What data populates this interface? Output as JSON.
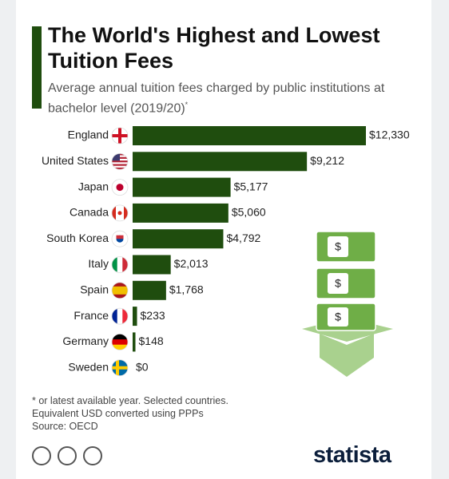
{
  "chart_data": {
    "type": "bar",
    "title": "The World's Highest and Lowest Tuition Fees",
    "subtitle": "Average annual tuition fees charged by public institutions at bachelor level (2019/20)",
    "subtitle_mark": "*",
    "categories": [
      "England",
      "United States",
      "Japan",
      "Canada",
      "South Korea",
      "Italy",
      "Spain",
      "France",
      "Germany",
      "Sweden"
    ],
    "values": [
      12330,
      9212,
      5177,
      5060,
      4792,
      2013,
      1768,
      233,
      148,
      0
    ],
    "value_labels": [
      "$12,330",
      "$9,212",
      "$5,177",
      "$5,060",
      "$4,792",
      "$2,013",
      "$1,768",
      "$233",
      "$148",
      "$0"
    ],
    "color": "#1f4d0e",
    "notes": [
      "* or latest available year. Selected countries.",
      "Equivalent USD converted using PPPs",
      "Source: OECD"
    ],
    "brand": "statista"
  }
}
